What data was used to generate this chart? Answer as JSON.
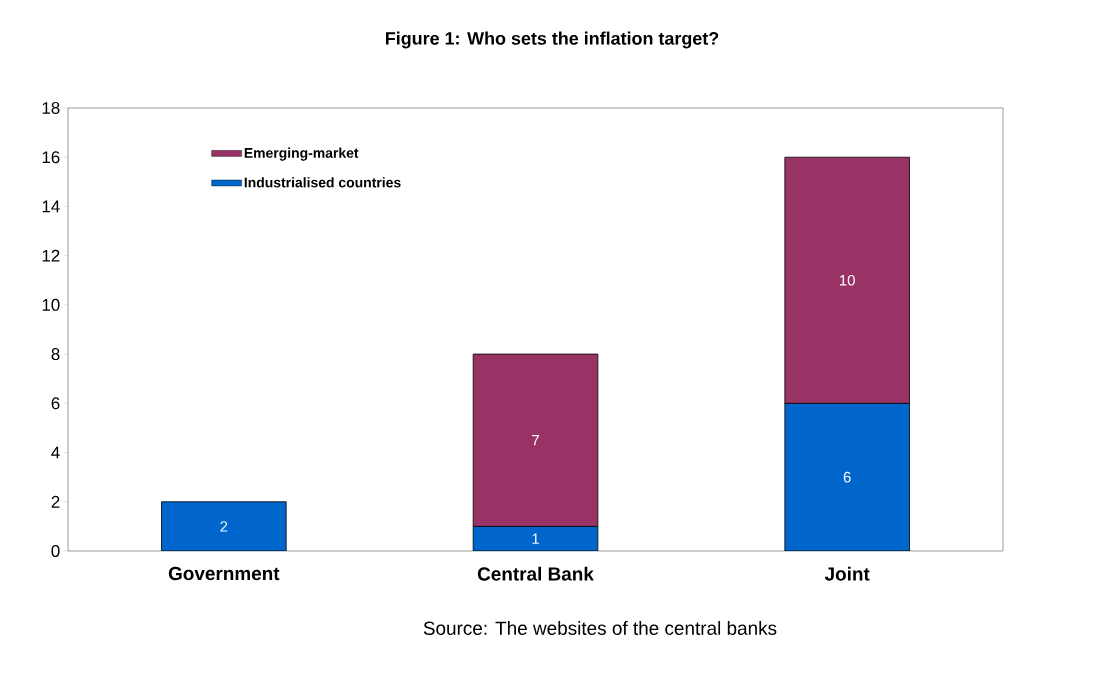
{
  "chart_data": {
    "type": "bar",
    "title": "Figure 1: Who sets the inflation target?",
    "categories": [
      "Government",
      "Central Bank",
      "Joint"
    ],
    "stacked": true,
    "series": [
      {
        "name": "Industrialised countries",
        "color": "#0066cc",
        "values": [
          2,
          1,
          6
        ]
      },
      {
        "name": "Emerging-market",
        "color": "#993366",
        "values": [
          null,
          7,
          10
        ]
      }
    ],
    "ylim": [
      0,
      18
    ],
    "yticks": [
      0,
      2,
      4,
      6,
      8,
      10,
      12,
      14,
      16,
      18
    ],
    "data_labels": true,
    "legend": "top left",
    "grid": false,
    "annotations": [
      "Source:  The websites of the central banks"
    ]
  }
}
